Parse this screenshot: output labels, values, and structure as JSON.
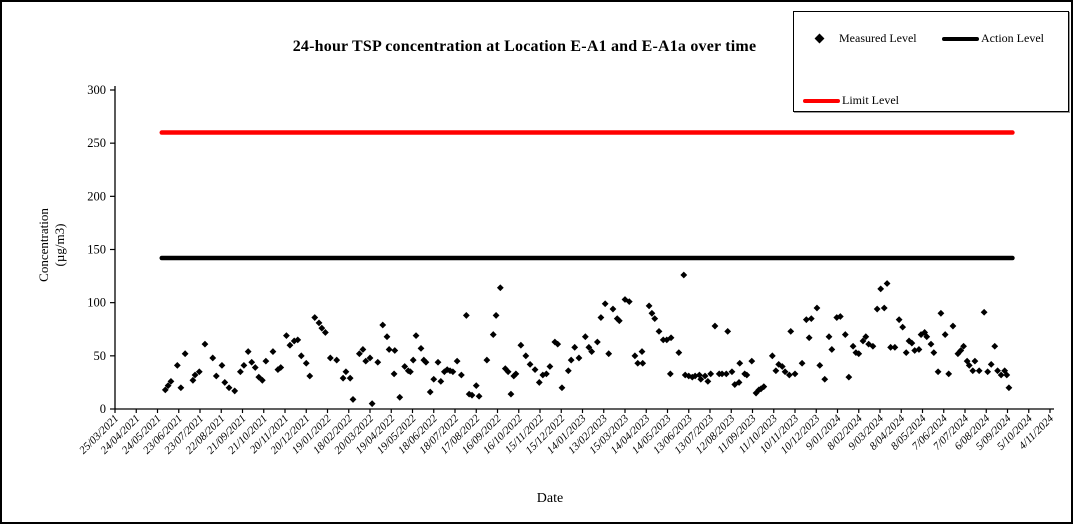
{
  "figure": {
    "title": "24-hour TSP concentration at Location E-A1 and E-A1a over time",
    "x_axis_label": "Date",
    "y_axis_label_line1": "Concentration",
    "y_axis_label_line2": "(µg/m3)"
  },
  "legend": {
    "items": [
      {
        "label": "Measured Level",
        "marker": "diamond",
        "color": "#000000"
      },
      {
        "label": "Action Level",
        "marker": "line",
        "color": "#000000"
      },
      {
        "label": "Limit Level",
        "marker": "line",
        "color": "#ff0000"
      }
    ]
  },
  "chart_data": {
    "type": "scatter",
    "title": "24-hour TSP concentration at Location E-A1 and E-A1a over time",
    "xlabel": "Date",
    "ylabel": "Concentration (µg/m3)",
    "ylim": [
      0,
      300
    ],
    "y_ticks": [
      0,
      50,
      100,
      150,
      200,
      250,
      300
    ],
    "grid": false,
    "legend_position": "top-right",
    "x_unit": "days since first tick (25/03/2021), estimated from pixel positions",
    "xlim_days": [
      0,
      1320
    ],
    "x_tick_interval_days": 30,
    "x_tick_labels": [
      "25/03/2021",
      "24/04/2021",
      "24/05/2021",
      "23/06/2021",
      "23/07/2021",
      "22/08/2021",
      "21/09/2021",
      "21/10/2021",
      "20/11/2021",
      "20/12/2021",
      "19/01/2022",
      "18/02/2022",
      "20/03/2022",
      "19/04/2022",
      "19/05/2022",
      "18/06/2022",
      "18/07/2022",
      "17/08/2022",
      "16/09/2022",
      "16/10/2022",
      "15/11/2022",
      "15/12/2022",
      "14/01/2023",
      "13/02/2023",
      "15/03/2023",
      "14/04/2023",
      "14/05/2023",
      "13/06/2023",
      "13/07/2023",
      "12/08/2023",
      "11/09/2023",
      "11/10/2023",
      "10/11/2023",
      "10/12/2023",
      "9/01/2024",
      "8/02/2024",
      "9/03/2024",
      "8/04/2024",
      "8/05/2024",
      "7/06/2024",
      "7/07/2024",
      "6/08/2024",
      "5/09/2024",
      "5/10/2024",
      "4/11/2024"
    ],
    "reference_lines": [
      {
        "name": "Action Level",
        "value": 142,
        "color": "#000000",
        "x_start_days": 66,
        "x_end_days": 1267
      },
      {
        "name": "Limit Level",
        "value": 260,
        "color": "#ff0000",
        "x_start_days": 66,
        "x_end_days": 1267
      }
    ],
    "series": [
      {
        "name": "Measured Level",
        "marker": "diamond",
        "color": "#000000",
        "points": [
          [
            71,
            18
          ],
          [
            75,
            22
          ],
          [
            79,
            26
          ],
          [
            88,
            41
          ],
          [
            93,
            20
          ],
          [
            99,
            52
          ],
          [
            110,
            27
          ],
          [
            113,
            32
          ],
          [
            119,
            35
          ],
          [
            127,
            61
          ],
          [
            138,
            48
          ],
          [
            143,
            31
          ],
          [
            151,
            41
          ],
          [
            155,
            25
          ],
          [
            161,
            20
          ],
          [
            169,
            17
          ],
          [
            177,
            35
          ],
          [
            182,
            41
          ],
          [
            188,
            54
          ],
          [
            193,
            44
          ],
          [
            198,
            39
          ],
          [
            203,
            30
          ],
          [
            208,
            27
          ],
          [
            213,
            45
          ],
          [
            223,
            54
          ],
          [
            230,
            37
          ],
          [
            234,
            39
          ],
          [
            242,
            69
          ],
          [
            247,
            60
          ],
          [
            253,
            64
          ],
          [
            258,
            65
          ],
          [
            263,
            50
          ],
          [
            270,
            43
          ],
          [
            275,
            31
          ],
          [
            282,
            86
          ],
          [
            288,
            81
          ],
          [
            292,
            76
          ],
          [
            297,
            72
          ],
          [
            304,
            48
          ],
          [
            313,
            46
          ],
          [
            322,
            29
          ],
          [
            326,
            35
          ],
          [
            332,
            29
          ],
          [
            336,
            9
          ],
          [
            345,
            52
          ],
          [
            350,
            56
          ],
          [
            354,
            45
          ],
          [
            360,
            48
          ],
          [
            363,
            5
          ],
          [
            371,
            44
          ],
          [
            378,
            79
          ],
          [
            384,
            68
          ],
          [
            387,
            56
          ],
          [
            394,
            33
          ],
          [
            395,
            55
          ],
          [
            402,
            11
          ],
          [
            409,
            40
          ],
          [
            414,
            36
          ],
          [
            417,
            35
          ],
          [
            421,
            46
          ],
          [
            425,
            69
          ],
          [
            432,
            57
          ],
          [
            436,
            46
          ],
          [
            439,
            44
          ],
          [
            445,
            16
          ],
          [
            450,
            28
          ],
          [
            456,
            44
          ],
          [
            460,
            26
          ],
          [
            465,
            35
          ],
          [
            469,
            37
          ],
          [
            473,
            36
          ],
          [
            477,
            35
          ],
          [
            483,
            45
          ],
          [
            489,
            32
          ],
          [
            496,
            88
          ],
          [
            500,
            14
          ],
          [
            504,
            13
          ],
          [
            510,
            22
          ],
          [
            514,
            12
          ],
          [
            525,
            46
          ],
          [
            534,
            70
          ],
          [
            538,
            88
          ],
          [
            544,
            114
          ],
          [
            551,
            38
          ],
          [
            555,
            35
          ],
          [
            559,
            14
          ],
          [
            563,
            31
          ],
          [
            566,
            33
          ],
          [
            573,
            60
          ],
          [
            580,
            50
          ],
          [
            586,
            42
          ],
          [
            593,
            37
          ],
          [
            599,
            25
          ],
          [
            604,
            32
          ],
          [
            609,
            33
          ],
          [
            614,
            40
          ],
          [
            621,
            63
          ],
          [
            625,
            61
          ],
          [
            631,
            20
          ],
          [
            640,
            36
          ],
          [
            644,
            46
          ],
          [
            649,
            58
          ],
          [
            655,
            48
          ],
          [
            664,
            68
          ],
          [
            669,
            58
          ],
          [
            673,
            54
          ],
          [
            681,
            63
          ],
          [
            686,
            86
          ],
          [
            692,
            99
          ],
          [
            697,
            52
          ],
          [
            703,
            94
          ],
          [
            709,
            85
          ],
          [
            712,
            83
          ],
          [
            720,
            103
          ],
          [
            726,
            101
          ],
          [
            734,
            50
          ],
          [
            738,
            43
          ],
          [
            744,
            54
          ],
          [
            745,
            43
          ],
          [
            754,
            97
          ],
          [
            758,
            90
          ],
          [
            762,
            85
          ],
          [
            768,
            73
          ],
          [
            774,
            65
          ],
          [
            779,
            65
          ],
          [
            784,
            33
          ],
          [
            785,
            67
          ],
          [
            796,
            53
          ],
          [
            803,
            126
          ],
          [
            805,
            32
          ],
          [
            810,
            31
          ],
          [
            815,
            30
          ],
          [
            819,
            31
          ],
          [
            825,
            32
          ],
          [
            827,
            28
          ],
          [
            833,
            31
          ],
          [
            837,
            26
          ],
          [
            841,
            33
          ],
          [
            847,
            78
          ],
          [
            853,
            33
          ],
          [
            857,
            33
          ],
          [
            863,
            33
          ],
          [
            865,
            73
          ],
          [
            871,
            35
          ],
          [
            875,
            23
          ],
          [
            881,
            25
          ],
          [
            882,
            43
          ],
          [
            889,
            33
          ],
          [
            892,
            32
          ],
          [
            899,
            45
          ],
          [
            905,
            15
          ],
          [
            909,
            18
          ],
          [
            912,
            19
          ],
          [
            916,
            21
          ],
          [
            928,
            50
          ],
          [
            933,
            36
          ],
          [
            937,
            42
          ],
          [
            942,
            40
          ],
          [
            946,
            35
          ],
          [
            952,
            32
          ],
          [
            954,
            73
          ],
          [
            960,
            33
          ],
          [
            970,
            43
          ],
          [
            976,
            84
          ],
          [
            980,
            67
          ],
          [
            983,
            85
          ],
          [
            991,
            95
          ],
          [
            995,
            41
          ],
          [
            1002,
            28
          ],
          [
            1008,
            68
          ],
          [
            1012,
            56
          ],
          [
            1019,
            86
          ],
          [
            1024,
            87
          ],
          [
            1031,
            70
          ],
          [
            1036,
            30
          ],
          [
            1042,
            59
          ],
          [
            1046,
            53
          ],
          [
            1050,
            52
          ],
          [
            1056,
            64
          ],
          [
            1060,
            68
          ],
          [
            1064,
            61
          ],
          [
            1070,
            59
          ],
          [
            1076,
            94
          ],
          [
            1081,
            113
          ],
          [
            1086,
            95
          ],
          [
            1090,
            118
          ],
          [
            1095,
            58
          ],
          [
            1101,
            58
          ],
          [
            1107,
            84
          ],
          [
            1112,
            77
          ],
          [
            1117,
            53
          ],
          [
            1121,
            64
          ],
          [
            1125,
            62
          ],
          [
            1129,
            55
          ],
          [
            1135,
            56
          ],
          [
            1138,
            70
          ],
          [
            1143,
            72
          ],
          [
            1146,
            68
          ],
          [
            1152,
            61
          ],
          [
            1156,
            53
          ],
          [
            1162,
            35
          ],
          [
            1166,
            90
          ],
          [
            1172,
            70
          ],
          [
            1177,
            33
          ],
          [
            1183,
            78
          ],
          [
            1190,
            52
          ],
          [
            1194,
            55
          ],
          [
            1198,
            59
          ],
          [
            1203,
            45
          ],
          [
            1206,
            41
          ],
          [
            1211,
            36
          ],
          [
            1214,
            45
          ],
          [
            1220,
            36
          ],
          [
            1227,
            91
          ],
          [
            1232,
            35
          ],
          [
            1237,
            42
          ],
          [
            1242,
            59
          ],
          [
            1246,
            36
          ],
          [
            1251,
            32
          ],
          [
            1256,
            36
          ],
          [
            1259,
            32
          ],
          [
            1262,
            20
          ]
        ]
      }
    ]
  }
}
